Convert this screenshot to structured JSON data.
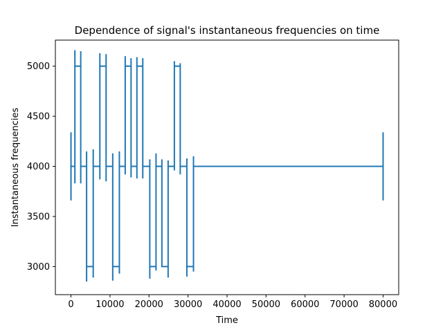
{
  "chart_data": {
    "type": "line",
    "title": "Dependence of signal's instantaneous frequencies on time",
    "xlabel": "Time",
    "ylabel": "Instantaneous frequencies",
    "xlim": [
      -4000,
      84000
    ],
    "ylim": [
      2720,
      5260
    ],
    "xticks": [
      0,
      10000,
      20000,
      30000,
      40000,
      50000,
      60000,
      70000,
      80000
    ],
    "yticks": [
      3000,
      3500,
      4000,
      4500,
      5000
    ],
    "grid": false,
    "legend": "none",
    "line_color": "#1f77b4",
    "series": [
      {
        "x": [
          0,
          0,
          0,
          1000,
          1000,
          1000,
          1000,
          2500,
          2500,
          2500,
          2500,
          4000,
          4000,
          4000,
          4000,
          5700,
          5700,
          5700,
          5700,
          7400,
          7400,
          7400,
          7400,
          9000,
          9000,
          9000,
          9000,
          10700,
          10700,
          10700,
          10700,
          12400,
          12400,
          12400,
          12400,
          13900,
          13900,
          13900,
          13900,
          15400,
          15400,
          15400,
          15400,
          16900,
          16900,
          16900,
          16900,
          18400,
          18400,
          18400,
          18400,
          20200,
          20200,
          20200,
          20200,
          21800,
          21800,
          21800,
          21800,
          23300,
          23300,
          23300,
          23300,
          24900,
          24900,
          24900,
          24900,
          26500,
          26500,
          26500,
          26500,
          28000,
          28000,
          28000,
          28000,
          29700,
          29700,
          29700,
          29700,
          31400,
          31400,
          31400,
          31400,
          80000,
          80000,
          80000,
          80000,
          80000
        ],
        "y": [
          4340,
          3660,
          4000,
          4000,
          3830,
          5160,
          5000,
          5000,
          5150,
          3830,
          4000,
          4000,
          4150,
          2850,
          3000,
          3000,
          2890,
          4170,
          4000,
          4000,
          3870,
          5130,
          5000,
          5000,
          5120,
          3850,
          4000,
          4000,
          4130,
          2860,
          3000,
          3000,
          2930,
          4150,
          4000,
          4000,
          3920,
          5100,
          5000,
          5000,
          5080,
          3890,
          4000,
          4000,
          3880,
          5090,
          5000,
          5000,
          5080,
          3880,
          4000,
          4000,
          4070,
          2880,
          3000,
          3000,
          2960,
          4130,
          4000,
          4000,
          3900,
          4070,
          3000,
          3000,
          2890,
          4060,
          4000,
          4000,
          3960,
          5050,
          5000,
          5000,
          5030,
          3920,
          4000,
          4000,
          4080,
          2900,
          3000,
          3000,
          2950,
          4100,
          4000,
          4000,
          4340,
          3660,
          4000,
          3800
        ]
      }
    ]
  }
}
